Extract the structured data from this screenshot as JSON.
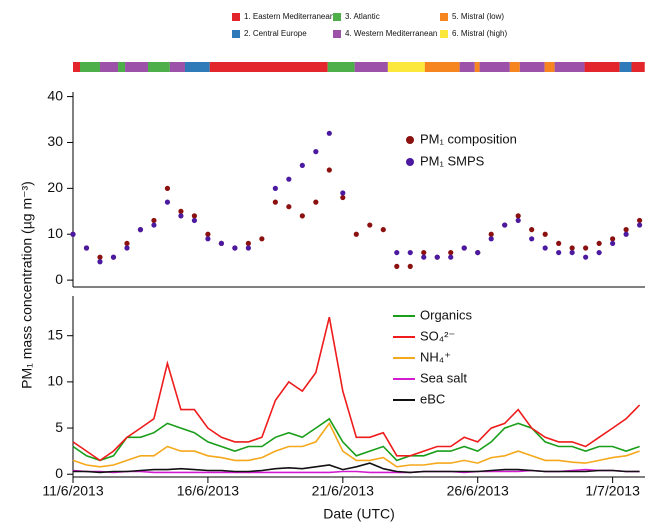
{
  "air_mass": {
    "classes": [
      {
        "name": "1. Eastern Mediterranean",
        "color": "#e2262b"
      },
      {
        "name": "2. Central Europe",
        "color": "#2f7ab8"
      },
      {
        "name": "3. Atlantic",
        "color": "#4caf4a"
      },
      {
        "name": "4. Western Mediterranean",
        "color": "#9b52a8"
      },
      {
        "name": "5. Mistral (low)",
        "color": "#f7851f"
      },
      {
        "name": "6. Mistral (high)",
        "color": "#fbe83a"
      }
    ],
    "segments": [
      {
        "start": 0,
        "end": 0.26,
        "class": 0
      },
      {
        "start": 0.26,
        "end": 1.0,
        "class": 2
      },
      {
        "start": 1.0,
        "end": 1.67,
        "class": 3
      },
      {
        "start": 1.67,
        "end": 1.93,
        "class": 2
      },
      {
        "start": 1.93,
        "end": 2.78,
        "class": 3
      },
      {
        "start": 2.78,
        "end": 3.59,
        "class": 2
      },
      {
        "start": 3.59,
        "end": 4.15,
        "class": 3
      },
      {
        "start": 4.15,
        "end": 5.07,
        "class": 1
      },
      {
        "start": 5.07,
        "end": 9.44,
        "class": 0
      },
      {
        "start": 9.44,
        "end": 10.44,
        "class": 2
      },
      {
        "start": 10.44,
        "end": 11.67,
        "class": 3
      },
      {
        "start": 11.67,
        "end": 13.04,
        "class": 5
      },
      {
        "start": 13.04,
        "end": 14.33,
        "class": 4
      },
      {
        "start": 14.33,
        "end": 14.89,
        "class": 3
      },
      {
        "start": 14.89,
        "end": 15.07,
        "class": 4
      },
      {
        "start": 15.07,
        "end": 16.19,
        "class": 3
      },
      {
        "start": 16.19,
        "end": 16.56,
        "class": 4
      },
      {
        "start": 16.56,
        "end": 17.48,
        "class": 3
      },
      {
        "start": 17.48,
        "end": 17.85,
        "class": 4
      },
      {
        "start": 17.85,
        "end": 18.96,
        "class": 3
      },
      {
        "start": 18.96,
        "end": 20.26,
        "class": 0
      },
      {
        "start": 20.26,
        "end": 20.7,
        "class": 1
      },
      {
        "start": 20.7,
        "end": 21.19,
        "class": 0
      }
    ]
  },
  "chart_data": [
    {
      "type": "scatter",
      "ylabel": "PM₁ mass concentration (µg m⁻³)",
      "x": [
        0,
        0.5,
        1,
        1.5,
        2,
        2.5,
        3,
        3.5,
        4,
        4.5,
        5,
        5.5,
        6,
        6.5,
        7,
        7.5,
        8,
        8.5,
        9,
        9.5,
        10,
        10.5,
        11,
        11.5,
        12,
        12.5,
        13,
        13.5,
        14,
        14.5,
        15,
        15.5,
        16,
        16.5,
        17,
        17.5,
        18,
        18.5,
        19,
        19.5,
        20,
        20.5,
        21
      ],
      "xlim": [
        0,
        21.2
      ],
      "ylim": [
        -1.5,
        41
      ],
      "yticks": [
        0,
        10,
        20,
        30,
        40
      ],
      "series": [
        {
          "name": "PM₁ composition",
          "color": "#8b1010",
          "values": [
            10,
            7,
            5,
            5,
            8,
            11,
            13,
            20,
            15,
            14,
            10,
            8,
            7,
            8,
            9,
            17,
            16,
            14,
            17,
            24,
            18,
            10,
            12,
            11,
            3,
            3,
            6,
            5,
            6,
            7,
            6,
            10,
            12,
            14,
            11,
            10,
            8,
            7,
            7,
            8,
            9,
            11,
            13
          ]
        },
        {
          "name": "PM₁ SMPS",
          "color": "#4b1aa0",
          "values": [
            10,
            7,
            4,
            5,
            7,
            11,
            12,
            17,
            14,
            13,
            9,
            8,
            7,
            7,
            null,
            20,
            22,
            25,
            28,
            32,
            19,
            null,
            null,
            null,
            6,
            6,
            5,
            5,
            5,
            7,
            6,
            9,
            12,
            13,
            9,
            7,
            6,
            6,
            5,
            6,
            8,
            10,
            12
          ]
        }
      ]
    },
    {
      "type": "line",
      "xlabel": "Date (UTC)",
      "x": [
        0,
        0.5,
        1,
        1.5,
        2,
        2.5,
        3,
        3.5,
        4,
        4.5,
        5,
        5.5,
        6,
        6.5,
        7,
        7.5,
        8,
        8.5,
        9,
        9.5,
        10,
        10.5,
        11,
        11.5,
        12,
        12.5,
        13,
        13.5,
        14,
        14.5,
        15,
        15.5,
        16,
        16.5,
        17,
        17.5,
        18,
        18.5,
        19,
        19.5,
        20,
        20.5,
        21
      ],
      "xlim": [
        0,
        21.2
      ],
      "xticks": [
        {
          "value": 0,
          "label": "11/6/2013"
        },
        {
          "value": 5,
          "label": "16/6/2013"
        },
        {
          "value": 10,
          "label": "21/6/2013"
        },
        {
          "value": 15,
          "label": "26/6/2013"
        },
        {
          "value": 20,
          "label": "1/7/2013"
        }
      ],
      "ylim": [
        -0.3,
        19.3
      ],
      "yticks": [
        0,
        5,
        10,
        15
      ],
      "series": [
        {
          "name": "Organics",
          "color": "#1a9e1a",
          "values": [
            3,
            2,
            1.5,
            2,
            4,
            4,
            4.5,
            5.5,
            5,
            4.5,
            3.5,
            3,
            2.5,
            3,
            3,
            4,
            4.5,
            4,
            5,
            6,
            3.5,
            2,
            2.5,
            3,
            1.5,
            2,
            2,
            2.5,
            2.5,
            3,
            2.5,
            3.5,
            5,
            5.5,
            5,
            3.5,
            3,
            3,
            2.5,
            3,
            3,
            2.5,
            3
          ]
        },
        {
          "name": "SO₄²⁻",
          "color": "#ee1c1c",
          "values": [
            3.5,
            2.5,
            1.5,
            2.5,
            4,
            5,
            6,
            12,
            7,
            7,
            5,
            4,
            3.5,
            3.5,
            4,
            8,
            10,
            9,
            11,
            17,
            9,
            4,
            4,
            4.5,
            2,
            2,
            2.5,
            3,
            3,
            4,
            3.5,
            5,
            5.5,
            7,
            5,
            4,
            3.5,
            3.5,
            3,
            4,
            5,
            6,
            7.5
          ]
        },
        {
          "name": "NH₄⁺",
          "color": "#f5a81c",
          "values": [
            1.5,
            1,
            0.8,
            1,
            1.5,
            2,
            2,
            3,
            2.5,
            2.5,
            2,
            1.8,
            1.5,
            1.5,
            1.8,
            2.5,
            3,
            3,
            3.5,
            5.5,
            2.5,
            1.5,
            1.5,
            1.8,
            0.8,
            1,
            1,
            1.2,
            1.2,
            1.5,
            1.2,
            1.8,
            2,
            2.5,
            2,
            1.5,
            1.5,
            1.3,
            1.2,
            1.5,
            1.8,
            2,
            2.5
          ]
        },
        {
          "name": "Sea salt",
          "color": "#d21cd2",
          "values": [
            0.4,
            0.3,
            0.3,
            0.2,
            0.3,
            0.3,
            0.2,
            0.2,
            0.2,
            0.2,
            0.2,
            0.2,
            0.2,
            0.2,
            0.2,
            0.2,
            0.2,
            0.2,
            0.2,
            0.2,
            0.3,
            0.3,
            0.2,
            0.2,
            0.2,
            0.2,
            0.3,
            0.3,
            0.3,
            0.2,
            0.3,
            0.3,
            0.3,
            0.3,
            0.4,
            0.3,
            0.3,
            0.4,
            0.5,
            0.4,
            0.4,
            0.3,
            0.3
          ]
        },
        {
          "name": "eBC",
          "color": "#111111",
          "values": [
            0.3,
            0.3,
            0.2,
            0.3,
            0.3,
            0.4,
            0.5,
            0.5,
            0.6,
            0.5,
            0.4,
            0.4,
            0.3,
            0.3,
            0.4,
            0.6,
            0.7,
            0.6,
            0.8,
            1.0,
            0.5,
            0.8,
            1.2,
            0.6,
            0.3,
            0.2,
            0.3,
            0.3,
            0.3,
            0.3,
            0.3,
            0.4,
            0.5,
            0.5,
            0.4,
            0.3,
            0.3,
            0.3,
            0.3,
            0.4,
            0.4,
            0.3,
            0.3
          ]
        }
      ]
    }
  ]
}
